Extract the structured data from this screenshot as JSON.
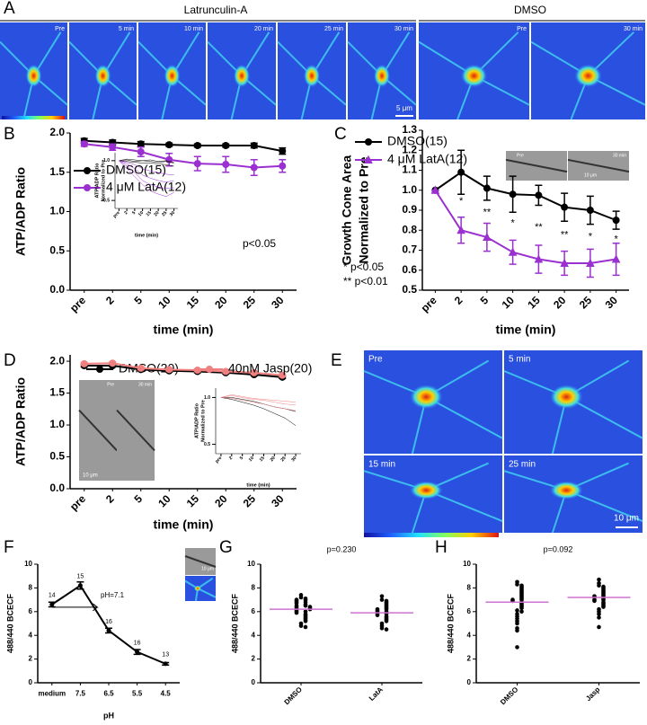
{
  "figure": {
    "panels": [
      "A",
      "B",
      "C",
      "D",
      "E",
      "F",
      "G",
      "H"
    ],
    "a_groups": [
      "Latrunculin-A",
      "DMSO"
    ],
    "a_frames": [
      "Pre",
      "5 min",
      "10 min",
      "20 min",
      "25 min",
      "30 min",
      "Pre",
      "30 min"
    ],
    "a_scale": "5 μm",
    "c_inset": [
      "Pre",
      "30 min",
      "10 μm"
    ],
    "d_inset": [
      "Pre",
      "30 min",
      "10 μm"
    ],
    "e_frames": [
      "Pre",
      "5 min",
      "15 min",
      "25 min"
    ],
    "e_scale": "10 μm",
    "f_inset": "10 μm"
  },
  "chart_data": [
    {
      "type": "line",
      "ylabel": [
        "ATP/ADP Ratio"
      ],
      "xlabel": "time (min)",
      "categories": [
        "pre",
        "2",
        "5",
        "10",
        "15",
        "20",
        "25",
        "30"
      ],
      "ylim": [
        0,
        2
      ],
      "yticks": [
        {
          "value": 0,
          "label": "0.0"
        },
        0.5,
        {
          "value": 1,
          "label": "1.0"
        },
        1.5,
        {
          "value": 2,
          "label": "2.0"
        }
      ],
      "legend": true,
      "series": [
        {
          "name": "DMSO(15)",
          "color": "#000000",
          "marker": "circle",
          "values": [
            1.9,
            1.88,
            1.86,
            1.85,
            1.84,
            1.84,
            1.84,
            1.77
          ],
          "errors": [
            0.03,
            0.03,
            0.03,
            0.02,
            0.02,
            0.02,
            0.03,
            0.04
          ]
        },
        {
          "name": "4 μM LatA(12)",
          "color": "#9b30d0",
          "marker": "circle",
          "values": [
            1.86,
            1.82,
            1.76,
            1.66,
            1.61,
            1.6,
            1.56,
            1.58
          ],
          "errors": [
            0.03,
            0.04,
            0.06,
            0.08,
            0.09,
            0.1,
            0.1,
            0.08
          ]
        }
      ],
      "annotations": [
        "p<0.05"
      ]
    },
    {
      "type": "line",
      "ylabel": [
        "ATP/ADP Ratio",
        "Normalized to Pre"
      ],
      "xlabel": "time (min)",
      "categories": [
        "pre",
        "2",
        "5",
        "10",
        "15",
        "20",
        "25",
        "30"
      ],
      "ylim": [
        0.4,
        1.1
      ],
      "yticks": [
        0.5,
        {
          "value": 1,
          "label": "1.0"
        }
      ],
      "series": [
        {
          "color": "#000000",
          "values": [
            1,
            1.02,
            1.01,
            1,
            0.99,
            0.98,
            0.99,
            0.97
          ]
        },
        {
          "color": "#000000",
          "values": [
            1,
            0.99,
            0.98,
            0.97,
            0.97,
            0.96,
            0.95,
            0.93
          ]
        },
        {
          "color": "#000000",
          "values": [
            1,
            1.01,
            0.99,
            1,
            1.01,
            0.99,
            1,
            0.98
          ]
        },
        {
          "color": "#9b30d0",
          "values": [
            1,
            0.98,
            0.95,
            0.9,
            0.87,
            0.85,
            0.83,
            0.82
          ]
        },
        {
          "color": "#9b30d0",
          "values": [
            1,
            0.96,
            0.9,
            0.82,
            0.78,
            0.75,
            0.73,
            0.75
          ]
        },
        {
          "color": "#9b30d0",
          "values": [
            1,
            0.93,
            0.85,
            0.75,
            0.7,
            0.67,
            0.65,
            0.66
          ]
        },
        {
          "color": "#9b30d0",
          "values": [
            1,
            0.9,
            0.8,
            0.7,
            0.62,
            0.58,
            0.55,
            0.6
          ]
        }
      ]
    },
    {
      "type": "line",
      "ylabel": [
        "Growth Cone Area",
        "Normalized to  Pre"
      ],
      "xlabel": "time (min)",
      "categories": [
        "pre",
        "2",
        "5",
        "10",
        "15",
        "20",
        "25",
        "30"
      ],
      "ylim": [
        0.5,
        1.3
      ],
      "yticks": [
        0.5,
        0.6,
        0.7,
        0.8,
        0.9,
        {
          "value": 1,
          "label": "1.0"
        },
        1.1,
        1.2,
        1.3
      ],
      "legend": true,
      "series": [
        {
          "name": "DMSO(15)",
          "color": "#000000",
          "marker": "circle",
          "values": [
            1,
            1.09,
            1.01,
            0.98,
            0.975,
            0.915,
            0.9,
            0.85
          ],
          "errors": [
            0,
            0.11,
            0.06,
            0.09,
            0.05,
            0.07,
            0.07,
            0.045
          ]
        },
        {
          "name": "4 μM LatA(12)",
          "color": "#9b30d0",
          "marker": "triangle",
          "values": [
            1,
            0.8,
            0.765,
            0.69,
            0.655,
            0.635,
            0.635,
            0.655
          ],
          "errors": [
            0,
            0.065,
            0.07,
            0.06,
            0.07,
            0.06,
            0.07,
            0.08
          ]
        }
      ],
      "sig_labels": [
        null,
        "*",
        "**",
        "*",
        "**",
        "**",
        "*",
        "*"
      ],
      "annotations": [
        "* p<0.05",
        "** p<0.01"
      ]
    },
    {
      "type": "line",
      "ylabel": [
        "ATP/ADP Ratio"
      ],
      "xlabel": "time (min)",
      "categories": [
        "pre",
        "2",
        "5",
        "10",
        "15",
        "20",
        "25",
        "30"
      ],
      "ylim": [
        0,
        2.1
      ],
      "yticks": [
        {
          "value": 0,
          "label": "0.0"
        },
        0.5,
        {
          "value": 1,
          "label": "1.0"
        },
        1.5,
        {
          "value": 2,
          "label": "2.0"
        }
      ],
      "legend": true,
      "series": [
        {
          "name": "DMSO(20)",
          "color": "#000000",
          "marker": "circle",
          "values": [
            1.93,
            1.93,
            1.87,
            1.85,
            1.84,
            1.82,
            1.79,
            1.75
          ],
          "errors": [
            0.02,
            0.02,
            0.02,
            0.02,
            0.02,
            0.02,
            0.02,
            0.02
          ]
        },
        {
          "name": "40nM Jasp(20)",
          "color": "#f08080",
          "marker": "circle",
          "values": [
            1.96,
            1.97,
            1.89,
            1.87,
            1.86,
            1.84,
            1.82,
            1.78
          ],
          "errors": [
            0.02,
            0.02,
            0.02,
            0.02,
            0.02,
            0.02,
            0.02,
            0.02
          ]
        }
      ]
    },
    {
      "type": "line",
      "ylabel": [
        "ATP/ADP Ratio",
        "Normalized to Pre"
      ],
      "xlabel": "time (min)",
      "categories": [
        "pre",
        "2",
        "5",
        "10",
        "15",
        "20",
        "25",
        "30"
      ],
      "ylim": [
        0.4,
        1.1
      ],
      "yticks": [
        0.5,
        {
          "value": 1,
          "label": "1.0"
        }
      ],
      "series": [
        {
          "color": "#000000",
          "values": [
            1,
            1,
            0.98,
            0.96,
            0.93,
            0.9,
            0.88,
            0.85
          ]
        },
        {
          "color": "#000000",
          "values": [
            1,
            0.98,
            0.95,
            0.92,
            0.88,
            0.83,
            0.78,
            0.7
          ]
        },
        {
          "color": "#f08080",
          "values": [
            1,
            1.02,
            1,
            0.98,
            0.97,
            0.95,
            0.93,
            0.92
          ]
        },
        {
          "color": "#f08080",
          "values": [
            1,
            0.99,
            0.97,
            0.95,
            0.93,
            0.9,
            0.88,
            0.86
          ]
        },
        {
          "color": "#f08080",
          "values": [
            1,
            1.03,
            1.01,
            0.99,
            0.98,
            0.97,
            0.96,
            0.95
          ]
        }
      ]
    },
    {
      "type": "line",
      "ylabel": [
        "488/440 BCECF"
      ],
      "xlabel": "pH",
      "categories": [
        "medium",
        "7.5",
        "6.5",
        "5.5",
        "4.5"
      ],
      "ylim": [
        0,
        10
      ],
      "yticks": [
        0,
        2,
        4,
        6,
        8,
        10
      ],
      "series": [
        {
          "color": "#000000",
          "marker": "circle",
          "values": [
            6.6,
            8.2,
            4.4,
            2.6,
            1.6
          ],
          "errors": [
            0.2,
            0.3,
            0.2,
            0.2,
            0.1
          ],
          "point_labels": [
            "14",
            "15",
            "16",
            "16",
            "13"
          ]
        }
      ],
      "annotations": [
        "pH=7.1"
      ]
    },
    {
      "type": "dotplot",
      "title": "p=0.230",
      "ylabel": [
        "488/440 BCECF"
      ],
      "categories": [
        "DMSO",
        "LatA"
      ],
      "ylim": [
        0,
        10
      ],
      "yticks": [
        0,
        2,
        4,
        6,
        8,
        10
      ],
      "mean_color": "#d070d0",
      "values": [
        [
          7.4,
          7.2,
          7.1,
          7.0,
          7.0,
          6.9,
          6.8,
          6.8,
          6.7,
          6.6,
          6.5,
          6.5,
          6.4,
          6.4,
          6.3,
          6.3,
          6.2,
          6.2,
          6.1,
          6.0,
          6.0,
          5.9,
          5.8,
          5.7,
          5.6,
          5.5,
          5.4,
          5.3,
          5.2,
          5.0,
          4.8,
          4.7
        ],
        [
          7.3,
          7.0,
          6.9,
          6.8,
          6.7,
          6.6,
          6.5,
          6.4,
          6.3,
          6.2,
          6.2,
          6.1,
          6.0,
          6.0,
          5.9,
          5.8,
          5.8,
          5.7,
          5.6,
          5.5,
          5.4,
          5.3,
          5.2,
          5.0,
          4.8,
          4.6,
          4.5
        ]
      ],
      "means": [
        6.2,
        5.9
      ]
    },
    {
      "type": "dotplot",
      "title": "p=0.092",
      "ylabel": [
        "488/440 BCECF"
      ],
      "categories": [
        "DMSO",
        "Jasp"
      ],
      "ylim": [
        0,
        10
      ],
      "yticks": [
        0,
        2,
        4,
        6,
        8,
        10
      ],
      "mean_color": "#d070d0",
      "values": [
        [
          8.5,
          8.3,
          8.2,
          8.1,
          8.0,
          7.9,
          7.8,
          7.7,
          7.6,
          7.5,
          7.4,
          7.3,
          7.2,
          7.1,
          7.0,
          7.0,
          6.9,
          6.8,
          6.7,
          6.6,
          6.5,
          6.4,
          6.3,
          6.1,
          6.0,
          5.8,
          5.6,
          5.4,
          5.2,
          5.0,
          4.6,
          4.4,
          3.0
        ],
        [
          8.7,
          8.4,
          8.2,
          8.1,
          8.0,
          7.9,
          7.8,
          7.7,
          7.6,
          7.5,
          7.4,
          7.3,
          7.3,
          7.2,
          7.1,
          7.0,
          7.0,
          6.9,
          6.8,
          6.7,
          6.6,
          6.5,
          6.4,
          6.2,
          6.0,
          5.8,
          5.5,
          4.7
        ]
      ],
      "means": [
        6.8,
        7.2
      ]
    }
  ]
}
